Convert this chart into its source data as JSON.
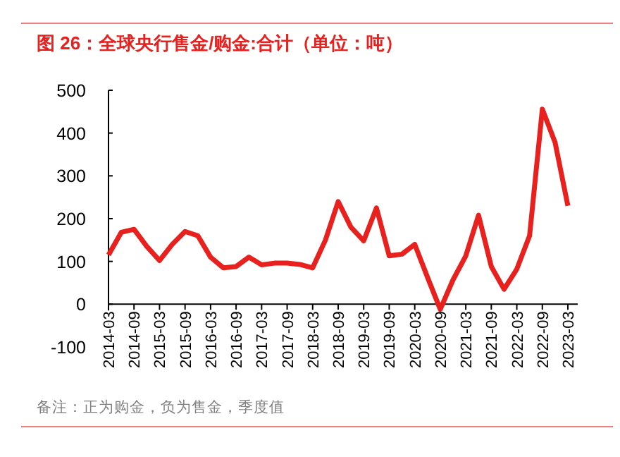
{
  "chart_data": {
    "type": "line",
    "title": "图 26：全球央行售金/购金:合计（单位：吨）",
    "annotations": [
      "备注：正为购金，负为售金，季度值"
    ],
    "categories": [
      "2014-03",
      null,
      "2014-09",
      null,
      "2015-03",
      null,
      "2015-09",
      null,
      "2016-03",
      null,
      "2016-09",
      null,
      "2017-03",
      null,
      "2017-09",
      null,
      "2018-03",
      null,
      "2018-09",
      null,
      "2019-03",
      null,
      "2019-09",
      null,
      "2020-03",
      null,
      "2020-09",
      null,
      "2021-03",
      null,
      "2021-09",
      null,
      "2022-03",
      null,
      "2022-09",
      null,
      "2023-03"
    ],
    "series": [
      {
        "color": "#e8201e",
        "values": [
          115,
          168,
          175,
          135,
          102,
          140,
          170,
          160,
          110,
          85,
          88,
          110,
          92,
          96,
          96,
          93,
          85,
          150,
          240,
          180,
          148,
          225,
          113,
          117,
          140,
          63,
          -12,
          57,
          113,
          208,
          88,
          35,
          82,
          160,
          456,
          378,
          230
        ]
      }
    ],
    "ylim": [
      -100,
      500
    ],
    "yticks": [
      -100,
      0,
      100,
      200,
      300,
      400,
      500
    ],
    "grid": false,
    "marker": "none",
    "line_style": "solid"
  }
}
